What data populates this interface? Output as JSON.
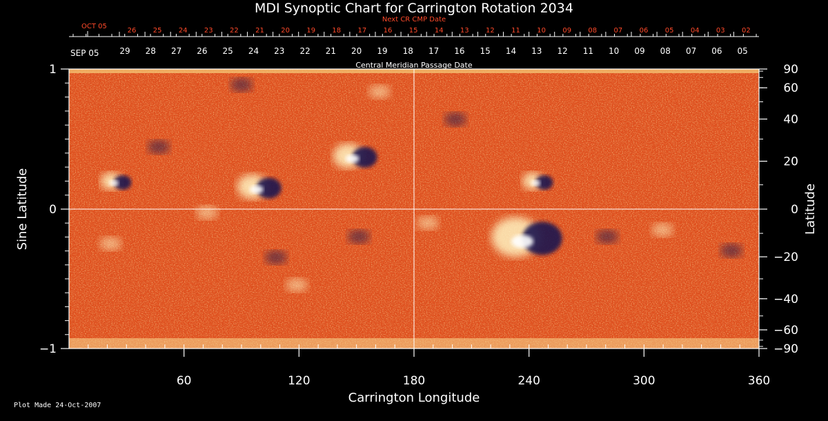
{
  "colors": {
    "background": "#000000",
    "axis": "#ffffff",
    "next_cr_text": "#ff4a2a",
    "map_base": "#e0501e",
    "positive_field": "#fff2c0",
    "negative_field": "#1a1250"
  },
  "footer": {
    "plot_made": "Plot Made 24-Oct-2007"
  },
  "chart_data": {
    "type": "heatmap",
    "title": "MDI Synoptic Chart for Carrington Rotation 2034",
    "xlabel": "Carrington Longitude",
    "ylabel_left": "Sine Latitude",
    "ylabel_right": "Latitude",
    "top_axis_label": "Central Meridian Passage Date",
    "next_axis_label": "Next CR CMP Date",
    "xlim": [
      0,
      360
    ],
    "ylim": [
      -1,
      1
    ],
    "x_ticks": [
      60,
      120,
      180,
      240,
      300,
      360
    ],
    "x_minor_step": 10,
    "y_left_ticks": [
      {
        "value": 1,
        "label": "1"
      },
      {
        "value": 0,
        "label": "0"
      },
      {
        "value": -1,
        "label": "−1"
      }
    ],
    "y_left_minor_step": 0.1,
    "y_right_ticks": [
      90,
      60,
      40,
      20,
      0,
      -20,
      -40,
      -60,
      -90
    ],
    "y_right_tick_labels": [
      "90",
      "60",
      "40",
      "20",
      "0",
      "−20",
      "−40",
      "−60",
      "−90"
    ],
    "grid_lines": {
      "vertical_at_longitude": 180,
      "horizontal_at_sine_latitude": 0
    },
    "cmp_dates": {
      "start_label": "SEP 05",
      "days": [
        "29",
        "28",
        "27",
        "26",
        "25",
        "24",
        "23",
        "22",
        "21",
        "20",
        "19",
        "18",
        "17",
        "16",
        "15",
        "14",
        "13",
        "12",
        "11",
        "10",
        "09",
        "08",
        "07",
        "06",
        "05"
      ]
    },
    "next_cr_dates": {
      "start_label": "OCT 05",
      "days": [
        "26",
        "25",
        "24",
        "23",
        "22",
        "21",
        "20",
        "19",
        "18",
        "17",
        "16",
        "15",
        "14",
        "13",
        "12",
        "11",
        "10",
        "09",
        "08",
        "07",
        "06",
        "05",
        "04",
        "03",
        "02"
      ]
    },
    "colormap": "negative dark blue → neutral orange-red → positive pale yellow/white",
    "active_regions": [
      {
        "lon": 240,
        "sinlat": -0.2,
        "polarity": "bipolar",
        "strength": "strong"
      },
      {
        "lon": 100,
        "sinlat": 0.16,
        "polarity": "bipolar",
        "strength": "moderate"
      },
      {
        "lon": 150,
        "sinlat": 0.38,
        "polarity": "bipolar",
        "strength": "moderate"
      },
      {
        "lon": 245,
        "sinlat": 0.2,
        "polarity": "bipolar",
        "strength": "weak"
      },
      {
        "lon": 25,
        "sinlat": 0.2,
        "polarity": "bipolar",
        "strength": "weak"
      }
    ]
  }
}
